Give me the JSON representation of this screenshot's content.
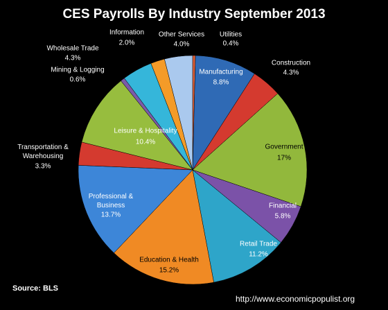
{
  "chart_data": {
    "type": "pie",
    "title": "CES Payrolls By Industry September 2013",
    "categories": [
      "Utilities",
      "Manufacturing",
      "Construction",
      "Government",
      "Financial",
      "Retail Trade",
      "Education & Health",
      "Professional & Business",
      "Transportation & Warehousing",
      "Leisure & Hospitality",
      "Mining & Logging",
      "Wholesale Trade",
      "Information",
      "Other Services"
    ],
    "values": [
      0.4,
      8.8,
      4.3,
      17,
      5.8,
      11.2,
      15.2,
      13.7,
      3.3,
      10.4,
      0.6,
      4.3,
      2.0,
      4.0
    ],
    "value_labels": [
      "0.4%",
      "8.8%",
      "4.3%",
      "17%",
      "5.8%",
      "11.2%",
      "15.2%",
      "13.7%",
      "3.3%",
      "10.4%",
      "0.6%",
      "4.3%",
      "2.0%",
      "4.0%"
    ],
    "colors": [
      "#e0623a",
      "#2f6ab5",
      "#d43a2f",
      "#92b83c",
      "#7b52a8",
      "#2ea5c9",
      "#f08a24",
      "#3d86d8",
      "#d43a2f",
      "#97bd3e",
      "#7b5aa8",
      "#35b6da",
      "#f49b28",
      "#aac9ee"
    ],
    "source": "Source:  BLS",
    "url": "http://www.economicpopulist.org"
  }
}
